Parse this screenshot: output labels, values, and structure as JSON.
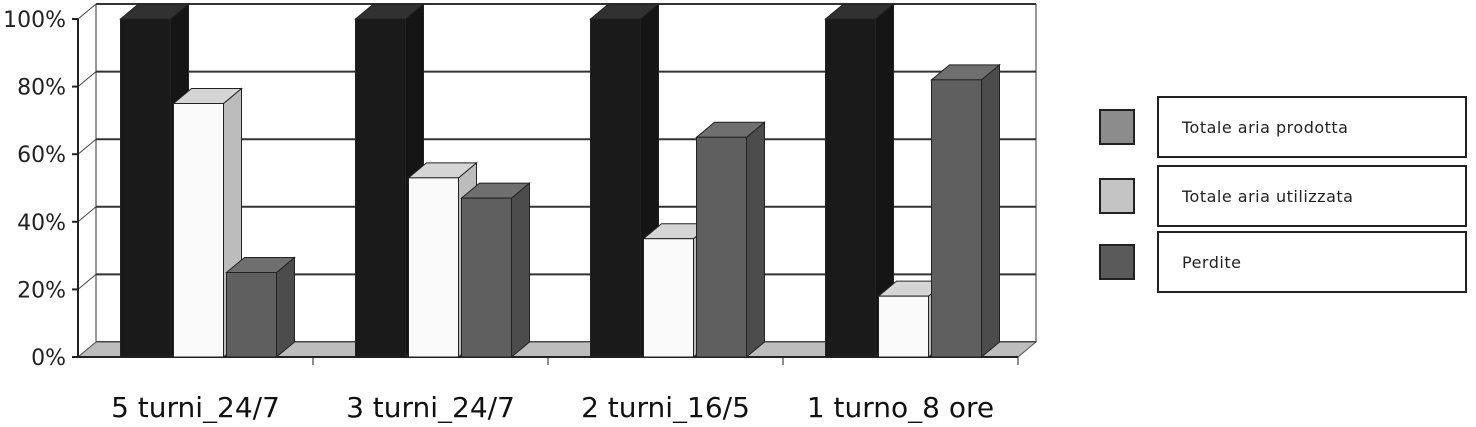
{
  "chart_data": {
    "type": "bar",
    "title": "",
    "xlabel": "",
    "ylabel": "",
    "ylim": [
      0,
      100
    ],
    "y_tick_labels": [
      "0%",
      "20%",
      "40%",
      "60%",
      "80%",
      "100%"
    ],
    "categories": [
      "5 turni_24/7",
      "3 turni_24/7",
      "2 turni_16/5",
      "1 turno_8 ore"
    ],
    "series": [
      {
        "name": "Totale aria prodotta",
        "values": [
          100,
          100,
          100,
          100
        ],
        "color": "#1a1a1a"
      },
      {
        "name": "Totale aria utilizzata",
        "values": [
          75,
          53,
          35,
          18
        ],
        "color": "#fafafa"
      },
      {
        "name": "Perdite",
        "values": [
          25,
          47,
          65,
          82
        ],
        "color": "#5f5f5f"
      }
    ],
    "legend": {
      "position": "right",
      "labels": [
        "Totale aria prodotta",
        "Totale aria utilizzata",
        "Perdite"
      ],
      "swatch_colors": [
        "#8c8c8c",
        "#c4c4c4",
        "#5a5a5a"
      ]
    },
    "grid": true
  }
}
